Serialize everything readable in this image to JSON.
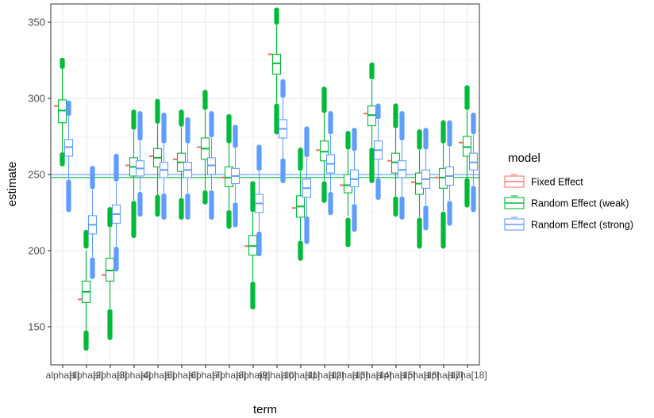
{
  "chart_data": {
    "type": "box",
    "xlabel": "term",
    "ylabel": "estimate",
    "ylim": [
      125,
      362
    ],
    "yticks": [
      150,
      200,
      250,
      300,
      350
    ],
    "categories": [
      "alpha[1]",
      "alpha[2]",
      "alpha[3]",
      "alpha[4]",
      "alpha[5]",
      "alpha[6]",
      "alpha[7]",
      "alpha[8]",
      "alpha[9]",
      "alpha[10]",
      "alpha[11]",
      "alpha[12]",
      "alpha[13]",
      "alpha[14]",
      "alpha[15]",
      "alpha[16]",
      "alpha[17]",
      "alpha[18]"
    ],
    "legend": {
      "title": "model",
      "placement": "right",
      "entries": [
        {
          "name": "Fixed Effect",
          "color": "#F8766D"
        },
        {
          "name": "Random Effect (weak)",
          "color": "#00BA38"
        },
        {
          "name": "Random Effect (strong)",
          "color": "#619CFF"
        }
      ]
    },
    "hlines": [
      {
        "series": "Random Effect (weak)",
        "value": 248,
        "color": "#00BA38"
      },
      {
        "series": "Random Effect (strong)",
        "value": 250,
        "color": "#619CFF"
      }
    ],
    "fixed_effect": [
      295,
      168,
      184,
      256,
      262,
      260,
      268,
      248,
      203,
      329,
      228,
      266,
      243,
      290,
      259,
      245,
      248,
      271
    ],
    "random_weak": [
      {
        "lower_whisker": 265,
        "q1": 284,
        "median": 292,
        "q3": 299,
        "upper_whisker": 320,
        "outliers_low": [
          257,
          263
        ],
        "outliers_high": [
          321,
          325
        ]
      },
      {
        "lower_whisker": 147,
        "q1": 166,
        "median": 173,
        "q3": 180,
        "upper_whisker": 200,
        "outliers_low": [
          136,
          146
        ],
        "outliers_high": [
          203,
          212
        ]
      },
      {
        "lower_whisker": 162,
        "q1": 180,
        "median": 187,
        "q3": 195,
        "upper_whisker": 215,
        "outliers_low": [
          143,
          160
        ],
        "outliers_high": [
          217,
          227
        ]
      },
      {
        "lower_whisker": 233,
        "q1": 249,
        "median": 255,
        "q3": 261,
        "upper_whisker": 279,
        "outliers_low": [
          210,
          231
        ],
        "outliers_high": [
          281,
          291
        ]
      },
      {
        "lower_whisker": 236,
        "q1": 255,
        "median": 261,
        "q3": 267,
        "upper_whisker": 283,
        "outliers_low": [
          224,
          235
        ],
        "outliers_high": [
          285,
          298
        ]
      },
      {
        "lower_whisker": 235,
        "q1": 252,
        "median": 258,
        "q3": 264,
        "upper_whisker": 281,
        "outliers_low": [
          222,
          233
        ],
        "outliers_high": [
          283,
          291
        ]
      },
      {
        "lower_whisker": 240,
        "q1": 260,
        "median": 267,
        "q3": 274,
        "upper_whisker": 292,
        "outliers_low": [
          232,
          238
        ],
        "outliers_high": [
          294,
          304
        ]
      },
      {
        "lower_whisker": 227,
        "q1": 242,
        "median": 248,
        "q3": 255,
        "upper_whisker": 270,
        "outliers_low": [
          216,
          225
        ],
        "outliers_high": [
          272,
          288
        ]
      },
      {
        "lower_whisker": 180,
        "q1": 197,
        "median": 203,
        "q3": 210,
        "upper_whisker": 225,
        "outliers_low": [
          163,
          178
        ],
        "outliers_high": [
          227,
          244
        ]
      },
      {
        "lower_whisker": 297,
        "q1": 316,
        "median": 323,
        "q3": 329,
        "upper_whisker": 348,
        "outliers_low": [
          278,
          295
        ],
        "outliers_high": [
          350,
          358
        ]
      },
      {
        "lower_whisker": 207,
        "q1": 222,
        "median": 229,
        "q3": 236,
        "upper_whisker": 252,
        "outliers_low": [
          195,
          205
        ],
        "outliers_high": [
          254,
          266
        ]
      },
      {
        "lower_whisker": 246,
        "q1": 259,
        "median": 265,
        "q3": 272,
        "upper_whisker": 290,
        "outliers_low": [
          233,
          244
        ],
        "outliers_high": [
          292,
          306
        ]
      },
      {
        "lower_whisker": 223,
        "q1": 238,
        "median": 243,
        "q3": 250,
        "upper_whisker": 266,
        "outliers_low": [
          204,
          220
        ],
        "outliers_high": [
          268,
          277
        ]
      },
      {
        "lower_whisker": 268,
        "q1": 282,
        "median": 289,
        "q3": 295,
        "upper_whisker": 312,
        "outliers_low": [
          246,
          266
        ],
        "outliers_high": [
          314,
          322
        ]
      },
      {
        "lower_whisker": 236,
        "q1": 251,
        "median": 258,
        "q3": 264,
        "upper_whisker": 280,
        "outliers_low": [
          224,
          234
        ],
        "outliers_high": [
          282,
          295
        ]
      },
      {
        "lower_whisker": 222,
        "q1": 237,
        "median": 244,
        "q3": 251,
        "upper_whisker": 266,
        "outliers_low": [
          203,
          220
        ],
        "outliers_high": [
          268,
          278
        ]
      },
      {
        "lower_whisker": 226,
        "q1": 241,
        "median": 248,
        "q3": 254,
        "upper_whisker": 270,
        "outliers_low": [
          203,
          224
        ],
        "outliers_high": [
          272,
          284
        ]
      },
      {
        "lower_whisker": 248,
        "q1": 262,
        "median": 268,
        "q3": 275,
        "upper_whisker": 292,
        "outliers_low": [
          230,
          246
        ],
        "outliers_high": [
          294,
          307
        ]
      }
    ],
    "random_strong": [
      {
        "lower_whisker": 247,
        "q1": 262,
        "median": 268,
        "q3": 273,
        "upper_whisker": 288,
        "outliers_low": [
          227,
          245
        ],
        "outliers_high": [
          290,
          297
        ]
      },
      {
        "lower_whisker": 196,
        "q1": 211,
        "median": 217,
        "q3": 223,
        "upper_whisker": 240,
        "outliers_low": [
          183,
          194
        ],
        "outliers_high": [
          242,
          254
        ]
      },
      {
        "lower_whisker": 203,
        "q1": 218,
        "median": 224,
        "q3": 230,
        "upper_whisker": 245,
        "outliers_low": [
          188,
          201
        ],
        "outliers_high": [
          247,
          262
        ]
      },
      {
        "lower_whisker": 239,
        "q1": 249,
        "median": 254,
        "q3": 259,
        "upper_whisker": 272,
        "outliers_low": [
          224,
          237
        ],
        "outliers_high": [
          274,
          290
        ]
      },
      {
        "lower_whisker": 238,
        "q1": 248,
        "median": 253,
        "q3": 258,
        "upper_whisker": 270,
        "outliers_low": [
          222,
          236
        ],
        "outliers_high": [
          272,
          289
        ]
      },
      {
        "lower_whisker": 238,
        "q1": 248,
        "median": 253,
        "q3": 258,
        "upper_whisker": 270,
        "outliers_low": [
          222,
          236
        ],
        "outliers_high": [
          272,
          286
        ]
      },
      {
        "lower_whisker": 240,
        "q1": 250,
        "median": 256,
        "q3": 261,
        "upper_whisker": 274,
        "outliers_low": [
          222,
          238
        ],
        "outliers_high": [
          276,
          290
        ]
      },
      {
        "lower_whisker": 232,
        "q1": 244,
        "median": 249,
        "q3": 254,
        "upper_whisker": 267,
        "outliers_low": [
          217,
          230
        ],
        "outliers_high": [
          269,
          281
        ]
      },
      {
        "lower_whisker": 213,
        "q1": 225,
        "median": 231,
        "q3": 237,
        "upper_whisker": 252,
        "outliers_low": [
          198,
          211
        ],
        "outliers_high": [
          254,
          268
        ]
      },
      {
        "lower_whisker": 261,
        "q1": 274,
        "median": 280,
        "q3": 286,
        "upper_whisker": 300,
        "outliers_low": [
          246,
          259
        ],
        "outliers_high": [
          302,
          311
        ]
      },
      {
        "lower_whisker": 223,
        "q1": 235,
        "median": 241,
        "q3": 247,
        "upper_whisker": 261,
        "outliers_low": [
          206,
          221
        ],
        "outliers_high": [
          263,
          280
        ]
      },
      {
        "lower_whisker": 239,
        "q1": 251,
        "median": 257,
        "q3": 263,
        "upper_whisker": 276,
        "outliers_low": [
          225,
          237
        ],
        "outliers_high": [
          278,
          290
        ]
      },
      {
        "lower_whisker": 231,
        "q1": 242,
        "median": 247,
        "q3": 253,
        "upper_whisker": 265,
        "outliers_low": [
          214,
          229
        ],
        "outliers_high": [
          267,
          279
        ]
      },
      {
        "lower_whisker": 248,
        "q1": 260,
        "median": 266,
        "q3": 272,
        "upper_whisker": 286,
        "outliers_low": [
          235,
          246
        ],
        "outliers_high": [
          288,
          295
        ]
      },
      {
        "lower_whisker": 236,
        "q1": 248,
        "median": 253,
        "q3": 259,
        "upper_whisker": 272,
        "outliers_low": [
          222,
          234
        ],
        "outliers_high": [
          274,
          290
        ]
      },
      {
        "lower_whisker": 230,
        "q1": 241,
        "median": 247,
        "q3": 253,
        "upper_whisker": 266,
        "outliers_low": [
          215,
          228
        ],
        "outliers_high": [
          268,
          279
        ]
      },
      {
        "lower_whisker": 233,
        "q1": 243,
        "median": 249,
        "q3": 255,
        "upper_whisker": 268,
        "outliers_low": [
          218,
          231
        ],
        "outliers_high": [
          270,
          284
        ]
      },
      {
        "lower_whisker": 243,
        "q1": 253,
        "median": 258,
        "q3": 264,
        "upper_whisker": 276,
        "outliers_low": [
          227,
          241
        ],
        "outliers_high": [
          278,
          289
        ]
      }
    ]
  }
}
